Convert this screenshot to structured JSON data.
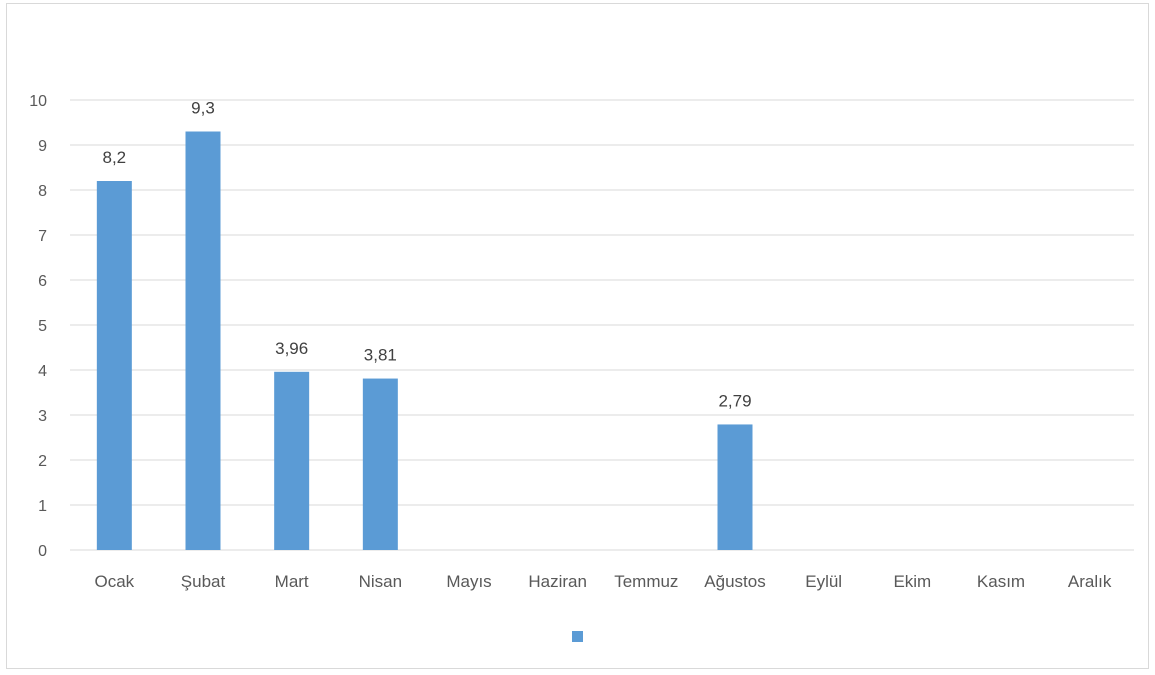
{
  "chart_data": {
    "type": "bar",
    "title": "",
    "xlabel": "",
    "ylabel": "",
    "categories": [
      "Ocak",
      "Şubat",
      "Mart",
      "Nisan",
      "Mayıs",
      "Haziran",
      "Temmuz",
      "Ağustos",
      "Eylül",
      "Ekim",
      "Kasım",
      "Aralık"
    ],
    "values": [
      8.2,
      9.3,
      3.96,
      3.81,
      null,
      null,
      null,
      2.79,
      null,
      null,
      null,
      null
    ],
    "data_labels": [
      "8,2",
      "9,3",
      "3,96",
      "3,81",
      "",
      "",
      "",
      "2,79",
      "",
      "",
      "",
      ""
    ],
    "ylim": [
      0,
      10
    ],
    "yticks": [
      "0",
      "1",
      "2",
      "3",
      "4",
      "5",
      "6",
      "7",
      "8",
      "9",
      "10"
    ],
    "grid": true,
    "legend": "bottom-center",
    "series_color": "#5b9bd5",
    "gridline_color": "#d9d9d9"
  }
}
